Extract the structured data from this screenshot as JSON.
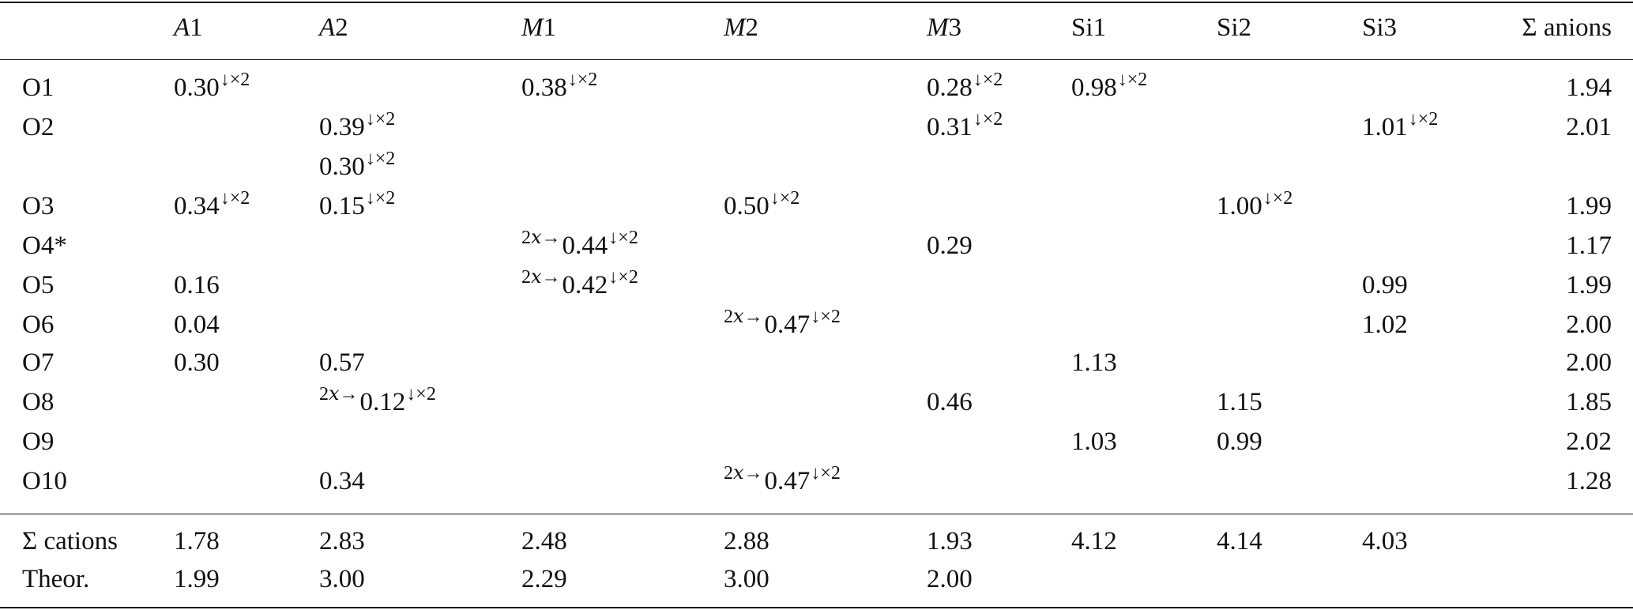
{
  "columns": [
    {
      "key": "label",
      "header": ""
    },
    {
      "key": "A1",
      "header_main": "A",
      "header_sub": "1"
    },
    {
      "key": "A2",
      "header_main": "A",
      "header_sub": "2"
    },
    {
      "key": "M1",
      "header_main": "M",
      "header_sub": "1"
    },
    {
      "key": "M2",
      "header_main": "M",
      "header_sub": "2"
    },
    {
      "key": "M3",
      "header_main": "M",
      "header_sub": "3"
    },
    {
      "key": "Si1",
      "header": "Si1"
    },
    {
      "key": "Si2",
      "header": "Si2"
    },
    {
      "key": "Si3",
      "header": "Si3"
    },
    {
      "key": "sum",
      "header": "Σ anions"
    }
  ],
  "rows": [
    {
      "label": "O1",
      "A1": {
        "v": "0.30",
        "s": "↓×2"
      },
      "M1": {
        "v": "0.38",
        "s": "↓×2"
      },
      "M3": {
        "v": "0.28",
        "s": "↓×2"
      },
      "Si1": {
        "v": "0.98",
        "s": "↓×2"
      },
      "sum": "1.94"
    },
    {
      "label": "O2",
      "A2": {
        "v": "0.39",
        "s": "↓×2"
      },
      "M3": {
        "v": "0.31",
        "s": "↓×2"
      },
      "Si3": {
        "v": "1.01",
        "s": "↓×2"
      },
      "sum": "2.01"
    },
    {
      "label": "",
      "A2": {
        "v": "0.30",
        "s": "↓×2"
      }
    },
    {
      "label": "O3",
      "A1": {
        "v": "0.34",
        "s": "↓×2"
      },
      "A2": {
        "v": "0.15",
        "s": "↓×2"
      },
      "M2": {
        "v": "0.50",
        "s": "↓×2"
      },
      "Si2": {
        "v": "1.00",
        "s": "↓×2"
      },
      "sum": "1.99"
    },
    {
      "label": "O4*",
      "M1": {
        "p": "2x→",
        "v": "0.44",
        "s": "↓×2"
      },
      "M3": {
        "v": "0.29"
      },
      "sum": "1.17"
    },
    {
      "label": "O5",
      "A1": {
        "v": "0.16"
      },
      "M1": {
        "p": "2x→",
        "v": "0.42",
        "s": "↓×2"
      },
      "Si3": {
        "v": "0.99"
      },
      "sum": "1.99"
    },
    {
      "label": "O6",
      "A1": {
        "v": "0.04"
      },
      "M2": {
        "p": "2x→",
        "v": "0.47",
        "s": "↓×2"
      },
      "Si3": {
        "v": "1.02"
      },
      "sum": "2.00"
    },
    {
      "label": "O7",
      "A1": {
        "v": "0.30"
      },
      "A2": {
        "v": "0.57"
      },
      "Si1": {
        "v": "1.13"
      },
      "sum": "2.00"
    },
    {
      "label": "O8",
      "A2": {
        "p": "2x→",
        "v": "0.12",
        "s": "↓×2"
      },
      "M3": {
        "v": "0.46"
      },
      "Si2": {
        "v": "1.15"
      },
      "sum": "1.85"
    },
    {
      "label": "O9",
      "Si1": {
        "v": "1.03"
      },
      "Si2": {
        "v": "0.99"
      },
      "sum": "2.02"
    },
    {
      "label": "O10",
      "A2": {
        "v": "0.34"
      },
      "M2": {
        "p": "2x→",
        "v": "0.47",
        "s": "↓×2"
      },
      "sum": "1.28"
    }
  ],
  "footer": [
    {
      "label": "Σ cations",
      "A1": "1.78",
      "A2": "2.83",
      "M1": "2.48",
      "M2": "2.88",
      "M3": "1.93",
      "Si1": "4.12",
      "Si2": "4.14",
      "Si3": "4.03"
    },
    {
      "label": "Theor.",
      "A1": "1.99",
      "A2": "3.00",
      "M1": "2.29",
      "M2": "3.00",
      "M3": "2.00"
    }
  ]
}
